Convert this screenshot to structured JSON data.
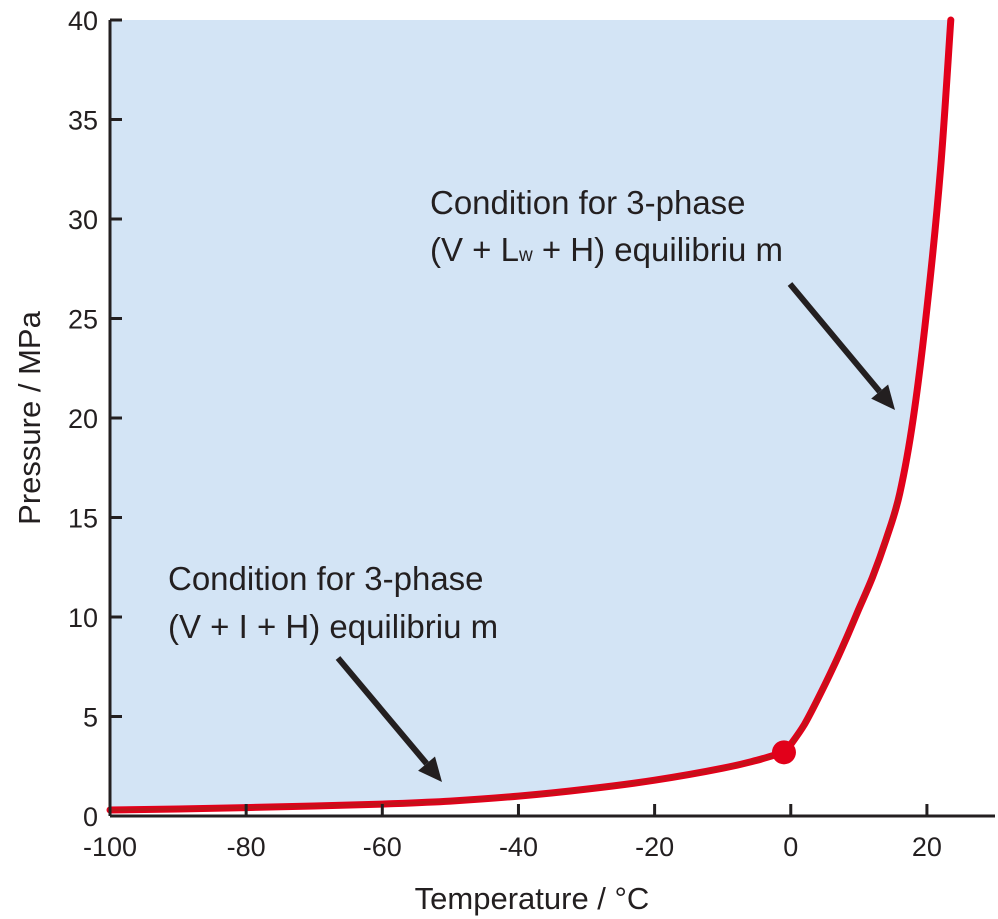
{
  "chart_data": {
    "type": "line",
    "title": "",
    "xlabel": "Temperature / °C",
    "ylabel": "Pressure / MPa",
    "xlim": [
      -100,
      30
    ],
    "ylim": [
      0,
      40
    ],
    "xticks": [
      -100,
      -80,
      -60,
      -40,
      -20,
      0,
      20
    ],
    "yticks": [
      0,
      5,
      10,
      15,
      20,
      25,
      30,
      35,
      40
    ],
    "grid": false,
    "shaded_region": "hydrate stable region (above/left of curve)",
    "series": [
      {
        "name": "3-phase (V + I + H) equilibrium",
        "color": "#e2001a",
        "x": [
          -100,
          -90,
          -80,
          -70,
          -60,
          -50,
          -40,
          -30,
          -20,
          -10,
          -5,
          -1
        ],
        "y": [
          0.3,
          0.35,
          0.42,
          0.5,
          0.6,
          0.75,
          1.0,
          1.35,
          1.8,
          2.4,
          2.8,
          3.2
        ]
      },
      {
        "name": "3-phase (V + Lw + H) equilibrium",
        "color": "#e2001a",
        "x": [
          -1,
          0,
          2,
          4,
          6,
          8,
          10,
          12,
          14,
          16,
          18,
          20,
          22,
          23.5
        ],
        "y": [
          3.2,
          3.6,
          4.6,
          5.9,
          7.3,
          8.8,
          10.4,
          12.0,
          13.9,
          16.2,
          20.0,
          25.5,
          32.5,
          40.0
        ]
      }
    ],
    "quadruple_point": {
      "x": -1,
      "y": 3.2
    },
    "annotations": [
      {
        "line1": "Condition for 3-phase",
        "line2_prefix": "(V + L",
        "line2_sub": "w",
        "line2_suffix": " + H) equilibriu  m"
      },
      {
        "line1": "Condition for 3-phase",
        "line2": "(V + I + H) equilibriu  m"
      }
    ]
  },
  "colors": {
    "shade": "#d3e4f5",
    "curve": "#e2001a",
    "curve_lower": "#b31b1b",
    "point": "#e2001a",
    "axis": "#231f20",
    "arrow": "#231f20"
  }
}
